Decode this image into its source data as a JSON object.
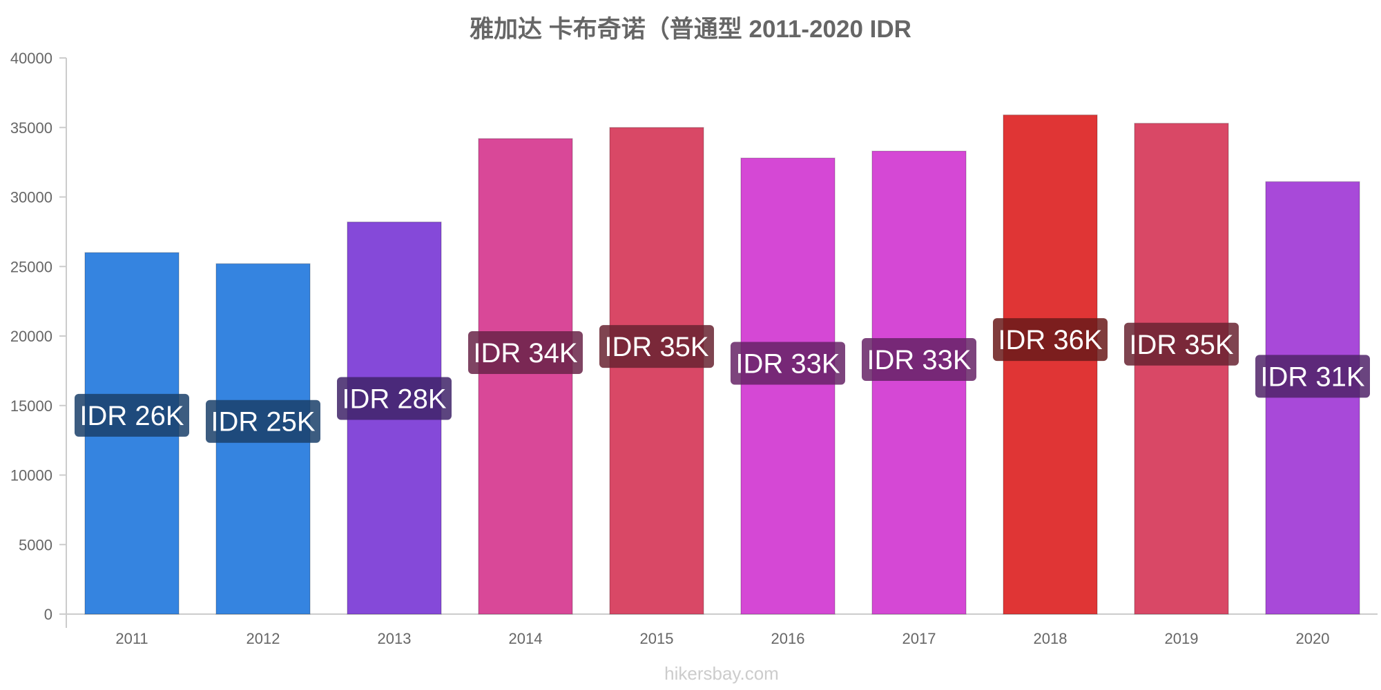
{
  "chart_data": {
    "type": "bar",
    "title": "雅加达 卡布奇诺（普通型 2011-2020 IDR",
    "categories": [
      "2011",
      "2012",
      "2013",
      "2014",
      "2015",
      "2016",
      "2017",
      "2018",
      "2019",
      "2020"
    ],
    "values": [
      26000,
      25200,
      28200,
      34200,
      35000,
      32800,
      33300,
      35900,
      35300,
      31100
    ],
    "data_labels": [
      "IDR 26K",
      "IDR 25K",
      "IDR 28K",
      "IDR 34K",
      "IDR 35K",
      "IDR 33K",
      "IDR 33K",
      "IDR 36K",
      "IDR 35K",
      "IDR 31K"
    ],
    "bar_colors": [
      "#3584e0",
      "#3584e0",
      "#8549d9",
      "#d94898",
      "#d94866",
      "#d548d5",
      "#d548d5",
      "#e03535",
      "#d94866",
      "#a849d9"
    ],
    "label_bg_colors": [
      "#1a3f6a",
      "#1a3f6a",
      "#3f2368",
      "#682348",
      "#682331",
      "#662366",
      "#662366",
      "#6a1a1a",
      "#682331",
      "#502368"
    ],
    "ylim": [
      0,
      40000
    ],
    "yticks": [
      0,
      5000,
      10000,
      15000,
      20000,
      25000,
      30000,
      35000,
      40000
    ],
    "xlabel": "",
    "ylabel": "",
    "grid": false,
    "legend": "none",
    "watermark": "hikersbay.com"
  }
}
